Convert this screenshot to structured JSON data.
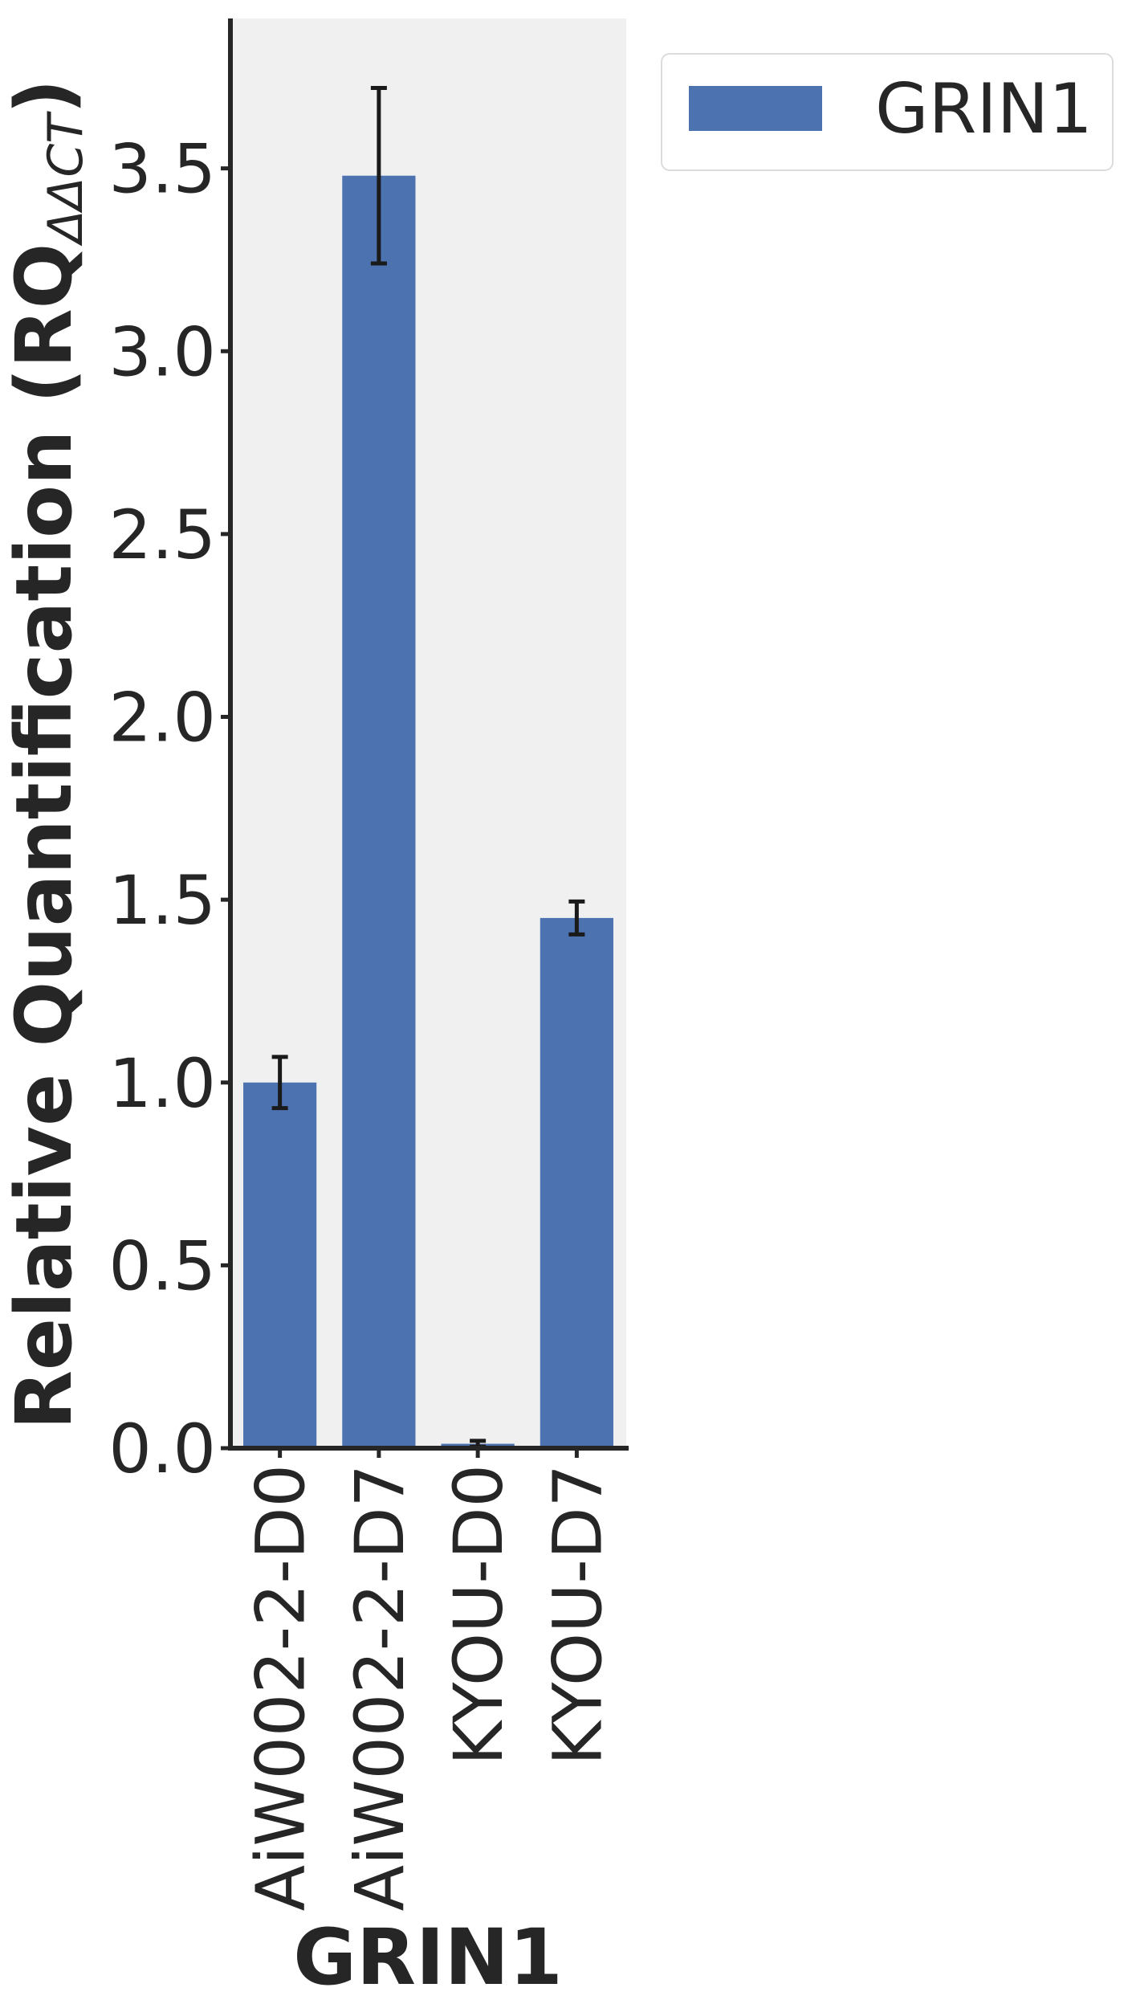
{
  "chart_data": {
    "type": "bar",
    "categories": [
      "AiW002-2-D0",
      "AiW002-2-D7",
      "KYOU-D0",
      "KYOU-D7"
    ],
    "series": [
      {
        "name": "GRIN1",
        "values": [
          1.0,
          3.48,
          0.012,
          1.45
        ],
        "error": [
          0.07,
          0.24,
          0.008,
          0.045
        ],
        "color": "#4c72b0"
      }
    ],
    "xlabel": "GRIN1",
    "ylabel": "Relative Quantification (RQ",
    "ylabel_subscript": "ΔΔCT",
    "ylabel_close": ")",
    "yticks": [
      "0.0",
      "0.5",
      "1.0",
      "1.5",
      "2.0",
      "2.5",
      "3.0",
      "3.5"
    ],
    "ylim": [
      0,
      3.91
    ],
    "grid": false,
    "legend_position": "outside-upper-right",
    "plot_background": "#f0f0f0",
    "axis_color": "#262626",
    "errorbar_color": "#1a1a1a"
  }
}
